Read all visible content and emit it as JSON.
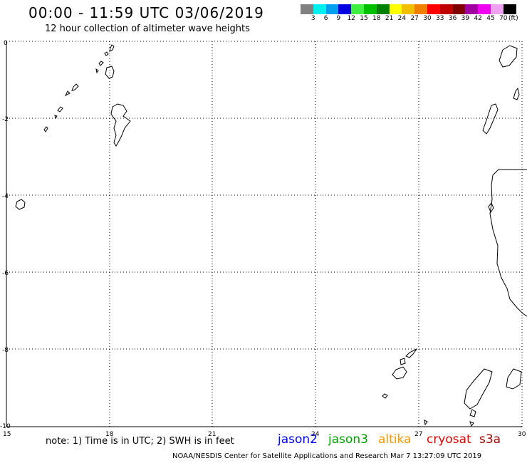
{
  "header": {
    "title": "00:00 - 11:59 UTC 03/06/2019",
    "subtitle": "12 hour collection of altimeter wave heights"
  },
  "scale": {
    "colors": [
      "#808080",
      "#00f0f0",
      "#00a0f0",
      "#0000e0",
      "#40f040",
      "#00c000",
      "#008000",
      "#ffff00",
      "#f0c000",
      "#f08000",
      "#ff0000",
      "#c00000",
      "#800000",
      "#a000a0",
      "#f000f0",
      "#f0a0f0",
      "#000000"
    ],
    "labels": [
      "3",
      "6",
      "9",
      "12",
      "15",
      "18",
      "21",
      "24",
      "27",
      "30",
      "33",
      "36",
      "39",
      "42",
      "45",
      "70"
    ],
    "unit": "(ft)"
  },
  "axes": {
    "x_labels": [
      "15",
      "18",
      "21",
      "24",
      "27",
      "30"
    ],
    "y_labels": [
      "0",
      "-2",
      "-4",
      "-6",
      "-8",
      "-10"
    ]
  },
  "footer": {
    "note": "note: 1) Time is in UTC; 2) SWH is in feet",
    "satellites": [
      {
        "name": "jason2",
        "color": "#0000ff"
      },
      {
        "name": "jason3",
        "color": "#00a000"
      },
      {
        "name": "altika",
        "color": "#ff9900"
      },
      {
        "name": "cryosat",
        "color": "#dd0000"
      },
      {
        "name": "s3a",
        "color": "#a00000"
      }
    ],
    "credit": "NOAA/NESDIS Center for Satellite Applications and Research   Mar  7 13:27:09 UTC 2019"
  }
}
